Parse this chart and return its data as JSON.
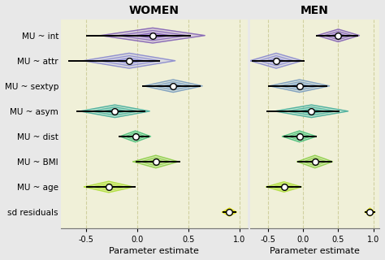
{
  "title_women": "WOMEN",
  "title_men": "MEN",
  "xlabel": "Parameter estimate",
  "bg_outer": "#e8e8e8",
  "background_color": "#f0f0d8",
  "grid_color": "#d0d0a0",
  "param_labels": [
    "MU ~ int",
    "MU ~ attr",
    "MU ~ sextyp",
    "MU ~ asym",
    "MU ~ dist",
    "MU ~ BMI",
    "MU ~ age",
    "sd residuals"
  ],
  "colors": [
    "#8060b0",
    "#8888cc",
    "#7799bb",
    "#44aa99",
    "#44bb77",
    "#88cc44",
    "#aadd33",
    "#dddd00"
  ],
  "fill_colors": [
    "#aa88dd",
    "#aaaaee",
    "#99bbdd",
    "#66ccbb",
    "#77dd99",
    "#aadd66",
    "#ccee55",
    "#eeee44"
  ],
  "women_median": [
    0.15,
    -0.08,
    0.35,
    -0.22,
    -0.02,
    0.18,
    -0.28,
    0.9
  ],
  "women_ci_low": [
    -0.5,
    -0.68,
    0.05,
    -0.6,
    -0.18,
    -0.02,
    -0.5,
    0.83
  ],
  "women_ci_high": [
    0.52,
    0.22,
    0.62,
    0.08,
    0.12,
    0.42,
    -0.02,
    0.97
  ],
  "women_half_width": [
    0.3,
    0.3,
    0.25,
    0.25,
    0.22,
    0.25,
    0.22,
    0.16
  ],
  "men_median": [
    0.5,
    -0.38,
    -0.05,
    0.12,
    -0.05,
    0.17,
    -0.27,
    0.95
  ],
  "men_ci_low": [
    0.18,
    -0.72,
    -0.5,
    -0.52,
    -0.28,
    -0.08,
    -0.52,
    0.88
  ],
  "men_ci_high": [
    0.78,
    0.02,
    0.35,
    0.52,
    0.2,
    0.42,
    -0.02,
    1.02
  ],
  "men_half_width": [
    0.25,
    0.3,
    0.25,
    0.25,
    0.22,
    0.25,
    0.2,
    0.16
  ],
  "xlim": [
    -0.75,
    1.08
  ],
  "xticks": [
    -0.5,
    0.0,
    0.5,
    1.0
  ],
  "xtick_labels": [
    "-0.5",
    "0.0",
    "0.5",
    "1.0"
  ],
  "n_params": 8
}
